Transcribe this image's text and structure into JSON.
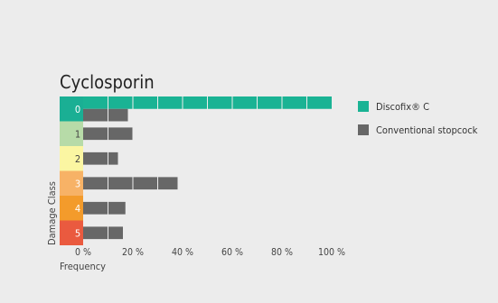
{
  "chart_data": {
    "type": "bar",
    "orientation": "horizontal",
    "title": "Cyclosporin",
    "xlabel": "Frequency",
    "ylabel": "Damage Class",
    "xlim": [
      0,
      100
    ],
    "x_ticks": [
      "0 %",
      "20 %",
      "40 %",
      "60 %",
      "80 %",
      "100 %"
    ],
    "categories": [
      "0",
      "1",
      "2",
      "3",
      "4",
      "5"
    ],
    "category_colors": [
      "#1aaf94",
      "#b7dba8",
      "#fbf6a2",
      "#f7b266",
      "#f39b2b",
      "#ea5a3f"
    ],
    "category_text_colors": [
      "#ffffff",
      "#444444",
      "#444444",
      "#ffffff",
      "#ffffff",
      "#ffffff"
    ],
    "series": [
      {
        "name": "Discofix® C",
        "color": "#1ab394",
        "values": [
          100,
          0,
          0,
          0,
          0,
          0
        ]
      },
      {
        "name": "Conventional stopcock",
        "color": "#676767",
        "values": [
          18,
          20,
          14,
          38,
          17,
          16
        ]
      }
    ],
    "grid": true,
    "legend_position": "right"
  }
}
